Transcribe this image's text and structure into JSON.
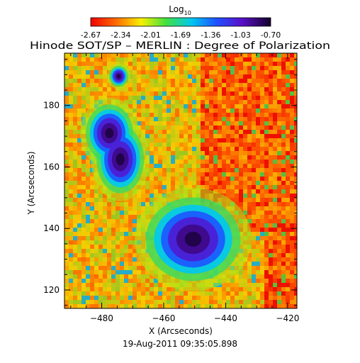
{
  "chart_data": {
    "type": "heatmap",
    "title": "Hinode SOT/SP – MERLIN : Degree of Polarization",
    "xlabel": "X (Arcseconds)",
    "ylabel": "Y (Arcseconds)",
    "timestamp": "19-Aug-2011 09:35:05.898",
    "xlim": [
      -492,
      -417
    ],
    "ylim": [
      114,
      197
    ],
    "xticks": [
      -480,
      -460,
      -440,
      -420
    ],
    "yticks": [
      120,
      140,
      160,
      180
    ],
    "colorbar": {
      "label": "Log",
      "label_subscript": "10",
      "range": [
        -2.67,
        -0.7
      ],
      "ticks": [
        "-2.67",
        "-2.34",
        "-2.01",
        "-1.69",
        "-1.36",
        "-1.03",
        "-0.70"
      ],
      "colormap": "rainbow"
    },
    "features": [
      {
        "name": "upper-left sunspot lobe",
        "x": -477.5,
        "y": 171,
        "rx": 4.5,
        "ry": 5.5
      },
      {
        "name": "upper-left sunspot lobe",
        "x": -474,
        "y": 162.5,
        "rx": 4.5,
        "ry": 6.5
      },
      {
        "name": "small pore",
        "x": -474.5,
        "y": 189.5,
        "rx": 1.8,
        "ry": 2
      },
      {
        "name": "lower sunspot",
        "x": -450.5,
        "y": 136.5,
        "rx": 9,
        "ry": 8
      }
    ]
  },
  "colors": {
    "background": "#ffffff",
    "text": "#000000",
    "low": "#ee0000",
    "high": "#1a0033"
  }
}
